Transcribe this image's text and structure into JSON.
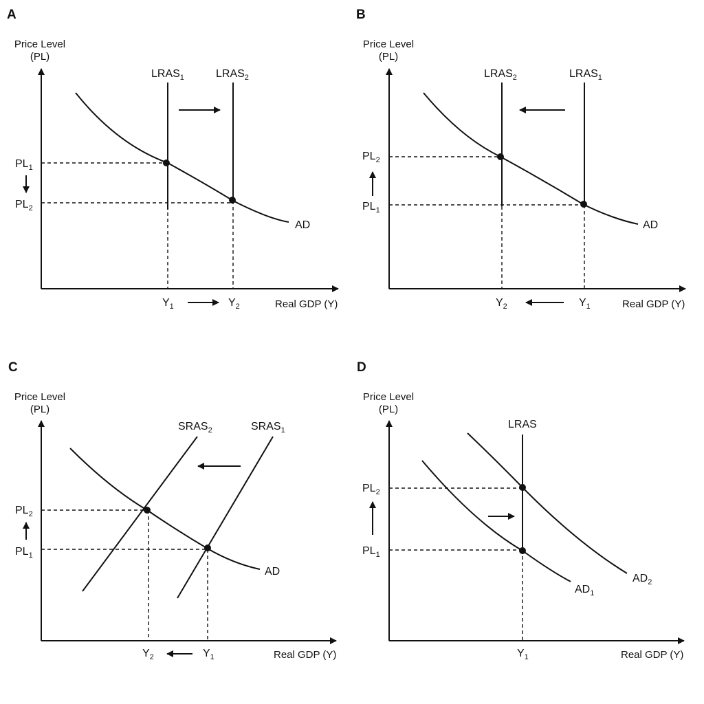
{
  "colors": {
    "ink": "#111111",
    "background": "#ffffff"
  },
  "panels": {
    "a": {
      "label": "A",
      "y_axis_title": "Price Level",
      "y_axis_abbrev": "(PL)",
      "x_axis_title": "Real GDP (Y)",
      "curves": {
        "lras1": "LRAS",
        "lras1_sub": "1",
        "lras2": "LRAS",
        "lras2_sub": "2",
        "ad": "AD"
      },
      "price_levels": {
        "upper": "PL",
        "upper_sub": "1",
        "lower": "PL",
        "lower_sub": "2"
      },
      "outputs": {
        "left": "Y",
        "left_sub": "1",
        "right": "Y",
        "right_sub": "2"
      },
      "arrows": {
        "curve_shift": "right",
        "output_change": "right",
        "price_change": "down"
      }
    },
    "b": {
      "label": "B",
      "y_axis_title": "Price Level",
      "y_axis_abbrev": "(PL)",
      "x_axis_title": "Real GDP (Y)",
      "curves": {
        "left": "LRAS",
        "left_sub": "2",
        "right": "LRAS",
        "right_sub": "1",
        "ad": "AD"
      },
      "price_levels": {
        "upper": "PL",
        "upper_sub": "2",
        "lower": "PL",
        "lower_sub": "1"
      },
      "outputs": {
        "left": "Y",
        "left_sub": "2",
        "right": "Y",
        "right_sub": "1"
      },
      "arrows": {
        "curve_shift": "left",
        "output_change": "left",
        "price_change": "up"
      }
    },
    "c": {
      "label": "C",
      "y_axis_title": "Price Level",
      "y_axis_abbrev": "(PL)",
      "x_axis_title": "Real GDP (Y)",
      "curves": {
        "left": "SRAS",
        "left_sub": "2",
        "right": "SRAS",
        "right_sub": "1",
        "ad": "AD"
      },
      "price_levels": {
        "upper": "PL",
        "upper_sub": "2",
        "lower": "PL",
        "lower_sub": "1"
      },
      "outputs": {
        "left": "Y",
        "left_sub": "2",
        "right": "Y",
        "right_sub": "1"
      },
      "arrows": {
        "curve_shift": "left",
        "output_change": "left",
        "price_change": "up"
      }
    },
    "d": {
      "label": "D",
      "y_axis_title": "Price Level",
      "y_axis_abbrev": "(PL)",
      "x_axis_title": "Real GDP (Y)",
      "curves": {
        "lras": "LRAS",
        "ad1": "AD",
        "ad1_sub": "1",
        "ad2": "AD",
        "ad2_sub": "2"
      },
      "price_levels": {
        "upper": "PL",
        "upper_sub": "2",
        "lower": "PL",
        "lower_sub": "1"
      },
      "outputs": {
        "only": "Y",
        "only_sub": "1"
      },
      "arrows": {
        "curve_shift": "right",
        "price_change": "up"
      }
    }
  }
}
